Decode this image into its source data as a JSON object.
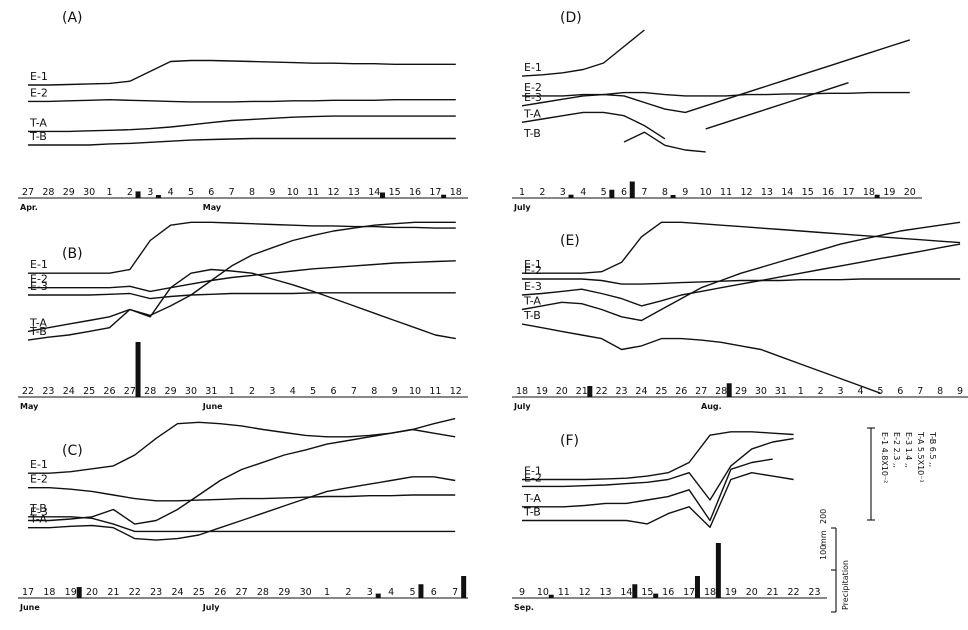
{
  "chart_data": [
    {
      "type": "line",
      "panel_label": "(A)",
      "x_ticks": [
        "27",
        "28",
        "29",
        "30",
        "1",
        "2",
        "3",
        "4",
        "5",
        "6",
        "7",
        "8",
        "9",
        "10",
        "11",
        "12",
        "13",
        "14",
        "15",
        "16",
        "17",
        "18"
      ],
      "months": [
        "Apr.",
        "May"
      ],
      "series": [
        {
          "name": "E-1",
          "values": [
            0.55,
            0.55,
            0.56,
            0.57,
            0.58,
            0.62,
            0.8,
            0.98,
            1.0,
            1.0,
            0.99,
            0.98,
            0.97,
            0.96,
            0.95,
            0.95,
            0.94,
            0.94,
            0.93,
            0.93,
            0.93,
            0.93
          ]
        },
        {
          "name": "E-2",
          "values": [
            0.25,
            0.25,
            0.26,
            0.27,
            0.28,
            0.27,
            0.26,
            0.25,
            0.24,
            0.24,
            0.24,
            0.25,
            0.25,
            0.26,
            0.26,
            0.27,
            0.27,
            0.27,
            0.28,
            0.28,
            0.28,
            0.28
          ]
        },
        {
          "name": "T-A",
          "values": [
            -0.3,
            -0.3,
            -0.3,
            -0.29,
            -0.28,
            -0.27,
            -0.25,
            -0.22,
            -0.18,
            -0.14,
            -0.1,
            -0.08,
            -0.06,
            -0.04,
            -0.03,
            -0.02,
            -0.02,
            -0.02,
            -0.02,
            -0.02,
            -0.02,
            -0.02
          ]
        },
        {
          "name": "T-B",
          "values": [
            -0.55,
            -0.55,
            -0.55,
            -0.55,
            -0.53,
            -0.52,
            -0.5,
            -0.48,
            -0.46,
            -0.45,
            -0.44,
            -0.43,
            -0.43,
            -0.43,
            -0.43,
            -0.43,
            -0.43,
            -0.43,
            -0.43,
            -0.43,
            -0.43,
            -0.43
          ]
        }
      ],
      "precipitation": [
        0,
        0,
        0,
        0,
        0,
        12,
        5,
        0,
        0,
        0,
        0,
        0,
        0,
        0,
        0,
        0,
        0,
        10,
        0,
        0,
        6,
        0
      ]
    },
    {
      "type": "line",
      "panel_label": "(B)",
      "x_ticks": [
        "22",
        "23",
        "24",
        "25",
        "26",
        "27",
        "28",
        "29",
        "30",
        "31",
        "1",
        "2",
        "3",
        "4",
        "5",
        "6",
        "7",
        "8",
        "9",
        "10",
        "11",
        "12"
      ],
      "months": [
        "May",
        "June"
      ],
      "series": [
        {
          "name": "E-1",
          "values": [
            0.3,
            0.3,
            0.3,
            0.3,
            0.3,
            0.35,
            0.75,
            0.96,
            1.0,
            1.0,
            0.99,
            0.98,
            0.97,
            0.96,
            0.95,
            0.95,
            0.94,
            0.94,
            0.93,
            0.93,
            0.92,
            0.92
          ]
        },
        {
          "name": "E-2",
          "values": [
            0.1,
            0.1,
            0.1,
            0.1,
            0.1,
            0.12,
            0.05,
            0.1,
            0.15,
            0.2,
            0.24,
            0.27,
            0.3,
            0.33,
            0.36,
            0.38,
            0.4,
            0.42,
            0.44,
            0.45,
            0.46,
            0.47
          ]
        },
        {
          "name": "E-3",
          "values": [
            0.0,
            0.0,
            0.0,
            0.0,
            0.01,
            0.02,
            -0.05,
            -0.02,
            0.0,
            0.01,
            0.02,
            0.02,
            0.02,
            0.02,
            0.03,
            0.03,
            0.03,
            0.03,
            0.03,
            0.03,
            0.03,
            0.03
          ]
        },
        {
          "name": "T-A",
          "values": [
            -0.5,
            -0.45,
            -0.4,
            -0.35,
            -0.3,
            -0.2,
            -0.28,
            -0.15,
            0.0,
            0.2,
            0.4,
            0.55,
            0.65,
            0.75,
            0.82,
            0.88,
            0.92,
            0.96,
            0.98,
            1.0,
            1.0,
            1.0
          ]
        },
        {
          "name": "T-B",
          "values": [
            -0.62,
            -0.58,
            -0.55,
            -0.5,
            -0.45,
            -0.2,
            -0.3,
            0.1,
            0.3,
            0.35,
            0.33,
            0.3,
            0.22,
            0.14,
            0.05,
            -0.05,
            -0.15,
            -0.25,
            -0.35,
            -0.45,
            -0.55,
            -0.6
          ]
        }
      ],
      "precipitation": [
        0,
        0,
        0,
        0,
        0,
        100,
        0,
        0,
        0,
        0,
        0,
        0,
        0,
        0,
        0,
        0,
        0,
        0,
        0,
        0,
        0,
        0
      ]
    },
    {
      "type": "line",
      "panel_label": "(C)",
      "x_ticks": [
        "17",
        "18",
        "19",
        "20",
        "21",
        "22",
        "23",
        "24",
        "25",
        "26",
        "27",
        "28",
        "29",
        "30",
        "1",
        "2",
        "3",
        "4",
        "5",
        "6",
        "7"
      ],
      "months": [
        "June",
        "July"
      ],
      "series": [
        {
          "name": "E-1",
          "values": [
            0.3,
            0.3,
            0.32,
            0.36,
            0.4,
            0.55,
            0.78,
            0.98,
            1.0,
            0.98,
            0.95,
            0.9,
            0.86,
            0.82,
            0.8,
            0.8,
            0.82,
            0.85,
            0.9,
            0.98,
            1.05
          ]
        },
        {
          "name": "E-2",
          "values": [
            0.1,
            0.1,
            0.08,
            0.05,
            0.0,
            -0.05,
            -0.08,
            -0.08,
            -0.07,
            -0.06,
            -0.05,
            -0.05,
            -0.04,
            -0.03,
            -0.02,
            -0.02,
            -0.01,
            -0.01,
            0.0,
            0.0,
            0.0
          ]
        },
        {
          "name": "E-3",
          "values": [
            -0.35,
            -0.35,
            -0.33,
            -0.3,
            -0.2,
            -0.4,
            -0.35,
            -0.2,
            0.0,
            0.2,
            0.35,
            0.45,
            0.55,
            0.62,
            0.7,
            0.75,
            0.8,
            0.85,
            0.9,
            0.85,
            0.8
          ]
        },
        {
          "name": "T-A",
          "values": [
            -0.45,
            -0.45,
            -0.43,
            -0.42,
            -0.45,
            -0.6,
            -0.62,
            -0.6,
            -0.55,
            -0.45,
            -0.35,
            -0.25,
            -0.15,
            -0.05,
            0.05,
            0.1,
            0.15,
            0.2,
            0.25,
            0.25,
            0.2
          ]
        },
        {
          "name": "T-B",
          "values": [
            -0.3,
            -0.3,
            -0.3,
            -0.32,
            -0.4,
            -0.5,
            -0.5,
            -0.5,
            -0.5,
            -0.5,
            -0.5,
            -0.5,
            -0.5,
            -0.5,
            -0.5,
            -0.5,
            -0.5,
            -0.5,
            -0.5,
            -0.5,
            -0.5
          ]
        }
      ],
      "precipitation": [
        0,
        0,
        20,
        0,
        0,
        0,
        0,
        0,
        0,
        0,
        0,
        0,
        0,
        0,
        0,
        0,
        8,
        0,
        25,
        0,
        40
      ]
    },
    {
      "type": "line",
      "panel_label": "(D)",
      "x_ticks": [
        "1",
        "2",
        "3",
        "4",
        "5",
        "6",
        "7",
        "8",
        "9",
        "10",
        "11",
        "12",
        "13",
        "14",
        "15",
        "16",
        "17",
        "18",
        "19",
        "20"
      ],
      "months": [
        "July"
      ],
      "series": [
        {
          "name": "E-1",
          "values": [
            0.4,
            0.42,
            0.45,
            0.5,
            0.6,
            0.85,
            1.1,
            null,
            null,
            null,
            null,
            null,
            null,
            null,
            null,
            null,
            null,
            null,
            null,
            null
          ]
        },
        {
          "name": "E-2",
          "values": [
            0.1,
            0.1,
            0.1,
            0.12,
            0.12,
            0.15,
            0.15,
            0.12,
            0.1,
            0.1,
            0.1,
            0.12,
            0.12,
            0.13,
            0.13,
            0.14,
            0.14,
            0.15,
            0.15,
            0.15
          ]
        },
        {
          "name": "E-3",
          "values": [
            -0.05,
            0.0,
            0.05,
            0.1,
            0.12,
            0.1,
            0.0,
            -0.1,
            -0.15,
            -0.05,
            0.05,
            0.15,
            0.25,
            0.35,
            0.45,
            0.55,
            0.65,
            0.75,
            0.85,
            0.95
          ]
        },
        {
          "name": "T-A",
          "values": [
            -0.3,
            -0.25,
            -0.2,
            -0.15,
            -0.15,
            -0.2,
            -0.35,
            -0.55,
            null,
            -0.4,
            -0.3,
            -0.2,
            -0.1,
            0.0,
            0.1,
            0.2,
            0.3,
            null,
            null,
            null
          ]
        },
        {
          "name": "T-B",
          "values": [
            null,
            null,
            null,
            null,
            null,
            -0.6,
            -0.45,
            -0.65,
            -0.72,
            -0.75,
            null,
            null,
            null,
            null,
            null,
            null,
            null,
            null,
            null,
            null
          ]
        }
      ],
      "precipitation": [
        0,
        0,
        6,
        0,
        15,
        30,
        0,
        5,
        0,
        0,
        0,
        0,
        0,
        0,
        0,
        0,
        0,
        6,
        0,
        0
      ]
    },
    {
      "type": "line",
      "panel_label": "(E)",
      "x_ticks": [
        "18",
        "19",
        "20",
        "21",
        "22",
        "23",
        "24",
        "25",
        "26",
        "27",
        "28",
        "29",
        "30",
        "31",
        "1",
        "2",
        "3",
        "4",
        "5",
        "6",
        "7",
        "8",
        "9"
      ],
      "months": [
        "July",
        "Aug."
      ],
      "series": [
        {
          "name": "E-1",
          "values": [
            0.3,
            0.3,
            0.3,
            0.3,
            0.32,
            0.45,
            0.8,
            1.0,
            1.0,
            0.98,
            0.96,
            0.94,
            0.92,
            0.9,
            0.88,
            0.86,
            0.84,
            0.82,
            0.8,
            0.78,
            0.76,
            0.74,
            0.72
          ]
        },
        {
          "name": "E-2",
          "values": [
            0.22,
            0.22,
            0.22,
            0.22,
            0.2,
            0.15,
            0.15,
            0.16,
            0.17,
            0.18,
            0.19,
            0.2,
            0.2,
            0.2,
            0.21,
            0.21,
            0.21,
            0.22,
            0.22,
            0.22,
            0.22,
            0.22,
            0.22
          ]
        },
        {
          "name": "E-3",
          "values": [
            0.0,
            0.02,
            0.05,
            0.08,
            0.02,
            -0.05,
            -0.15,
            -0.08,
            0.0,
            0.05,
            0.1,
            0.15,
            0.2,
            0.25,
            0.3,
            0.35,
            0.4,
            0.45,
            0.5,
            0.55,
            0.6,
            0.65,
            0.7
          ]
        },
        {
          "name": "T-A",
          "values": [
            -0.2,
            -0.15,
            -0.1,
            -0.12,
            -0.2,
            -0.3,
            -0.35,
            -0.2,
            -0.05,
            0.1,
            0.2,
            0.3,
            0.38,
            0.46,
            0.54,
            0.62,
            0.7,
            0.76,
            0.82,
            0.88,
            0.92,
            0.96,
            1.0
          ]
        },
        {
          "name": "T-B",
          "values": [
            -0.4,
            -0.45,
            -0.5,
            -0.55,
            -0.6,
            -0.75,
            -0.7,
            -0.6,
            -0.6,
            -0.62,
            -0.65,
            -0.7,
            -0.75,
            -0.85,
            -0.95,
            -1.05,
            -1.15,
            -1.25,
            -1.35,
            null,
            null,
            null,
            null
          ]
        }
      ],
      "precipitation": [
        0,
        0,
        0,
        20,
        0,
        0,
        0,
        0,
        0,
        0,
        25,
        0,
        0,
        0,
        0,
        0,
        0,
        0,
        0,
        0,
        0,
        0,
        0
      ]
    },
    {
      "type": "line",
      "panel_label": "(F)",
      "x_ticks": [
        "9",
        "10",
        "11",
        "12",
        "13",
        "14",
        "15",
        "16",
        "17",
        "18",
        "19",
        "20",
        "21",
        "22",
        "23"
      ],
      "months": [
        "Sep."
      ],
      "series": [
        {
          "name": "E-1",
          "values": [
            0.3,
            0.3,
            0.3,
            0.3,
            0.31,
            0.32,
            0.35,
            0.4,
            0.55,
            0.95,
            1.0,
            1.0,
            0.98,
            0.96,
            null
          ]
        },
        {
          "name": "E-2",
          "values": [
            0.2,
            0.2,
            0.2,
            0.21,
            0.22,
            0.24,
            0.26,
            0.3,
            0.4,
            0.0,
            0.5,
            0.75,
            0.85,
            0.9,
            null
          ]
        },
        {
          "name": "T-A",
          "values": [
            -0.1,
            -0.1,
            -0.1,
            -0.08,
            -0.05,
            -0.05,
            0.0,
            0.05,
            0.15,
            -0.3,
            0.45,
            0.55,
            0.6,
            null,
            null
          ]
        },
        {
          "name": "T-B",
          "values": [
            -0.3,
            -0.3,
            -0.3,
            -0.3,
            -0.3,
            -0.3,
            -0.35,
            -0.2,
            -0.1,
            -0.4,
            0.3,
            0.4,
            0.35,
            0.3,
            null
          ]
        }
      ],
      "precipitation": [
        0,
        6,
        0,
        0,
        0,
        25,
        8,
        0,
        40,
        100,
        0,
        0,
        0,
        0,
        0
      ]
    }
  ],
  "scale_legend": {
    "entries": [
      "E-1  4.8X10⁻²",
      "E-2  2.3 ,,",
      "E-3  1.4 ,,",
      "T-A  5.5X10⁻¹",
      "T-B  6.5 ,,"
    ],
    "precip_label": "Precipitation",
    "precip_unit": "mm",
    "precip_ticks": [
      "100",
      "200"
    ]
  }
}
